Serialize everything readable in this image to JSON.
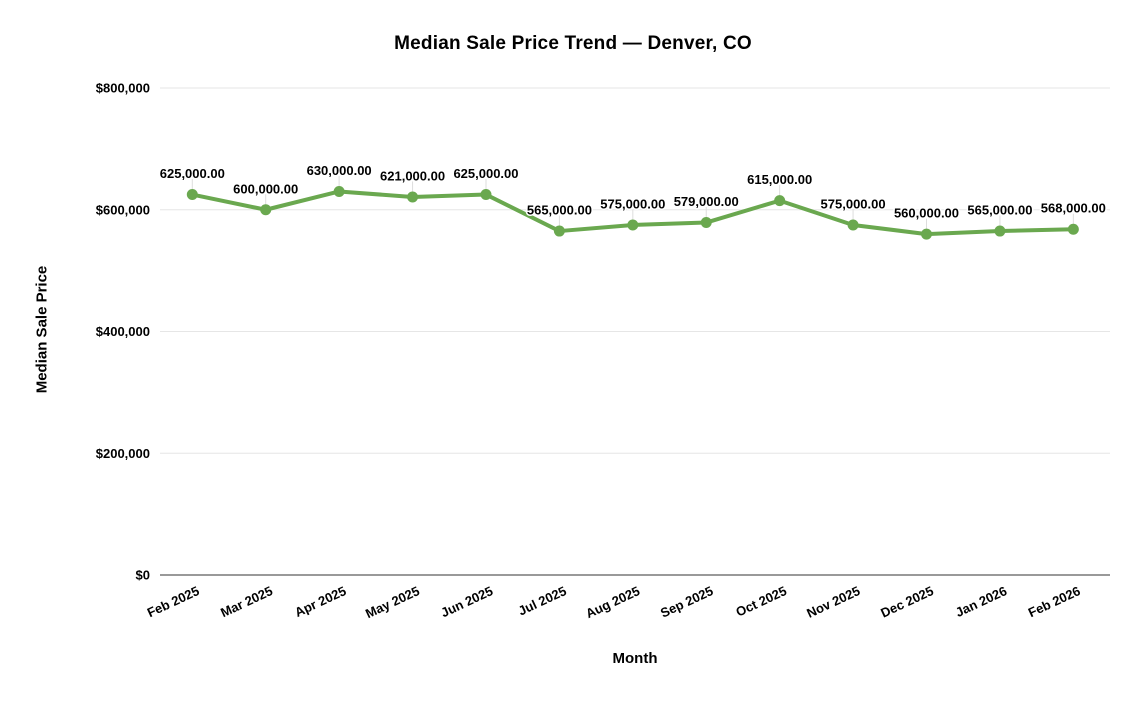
{
  "chart_data": {
    "type": "line",
    "title": "Median Sale Price Trend — Denver, CO",
    "xlabel": "Month",
    "ylabel": "Median Sale Price",
    "categories": [
      "Feb 2025",
      "Mar 2025",
      "Apr 2025",
      "May 2025",
      "Jun 2025",
      "Jul 2025",
      "Aug 2025",
      "Sep 2025",
      "Oct 2025",
      "Nov 2025",
      "Dec 2025",
      "Jan 2026",
      "Feb 2026"
    ],
    "series": [
      {
        "name": "Median Sale Price",
        "values": [
          625000,
          600000,
          630000,
          621000,
          625000,
          565000,
          575000,
          579000,
          615000,
          575000,
          560000,
          565000,
          568000
        ],
        "point_labels": [
          "625,000.00",
          "600,000.00",
          "630,000.00",
          "621,000.00",
          "625,000.00",
          "565,000.00",
          "575,000.00",
          "579,000.00",
          "615,000.00",
          "575,000.00",
          "560,000.00",
          "565,000.00",
          "568,000.00"
        ]
      }
    ],
    "ylim": [
      0,
      800000
    ],
    "y_tick_values": [
      0,
      200000,
      400000,
      600000,
      800000
    ],
    "y_tick_labels": [
      "$0",
      "$200,000",
      "$400,000",
      "$600,000",
      "$800,000"
    ],
    "x_tick_angle_deg": -25,
    "grid": true,
    "legend_position": "none",
    "colors": {
      "line": "#6aa84f",
      "marker": "#6aa84f",
      "grid": "#e6e6e6",
      "leader": "#dddddd",
      "axis": "#333333",
      "text": "#000000",
      "background": "#ffffff"
    }
  }
}
